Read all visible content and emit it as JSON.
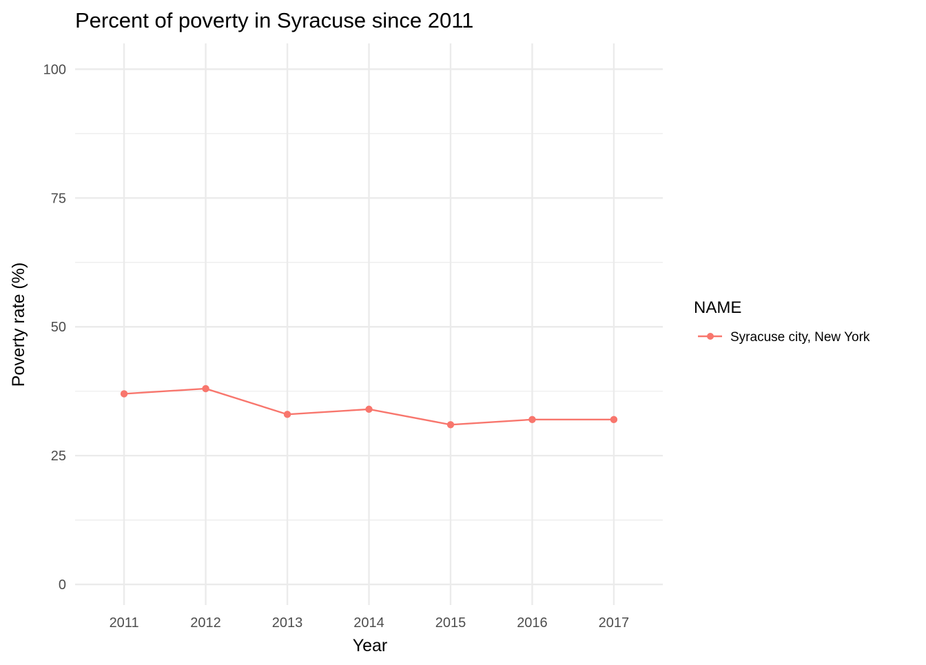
{
  "chart_data": {
    "type": "line",
    "title": "Percent of poverty in Syracuse since 2011",
    "xlabel": "Year",
    "ylabel": "Poverty rate (%)",
    "x": [
      2011,
      2012,
      2013,
      2014,
      2015,
      2016,
      2017
    ],
    "x_tick_labels": [
      "2011",
      "2012",
      "2013",
      "2014",
      "2015",
      "2016",
      "2017"
    ],
    "y_ticks": [
      0,
      25,
      50,
      75,
      100
    ],
    "y_tick_labels": [
      "0",
      "25",
      "50",
      "75",
      "100"
    ],
    "ylim": [
      -4,
      105
    ],
    "grid": true,
    "legend": {
      "title": "NAME",
      "position": "right"
    },
    "series": [
      {
        "name": "Syracuse city, New York",
        "color": "#F8766D",
        "values": [
          37,
          38,
          33,
          34,
          31,
          32,
          32
        ]
      }
    ]
  }
}
